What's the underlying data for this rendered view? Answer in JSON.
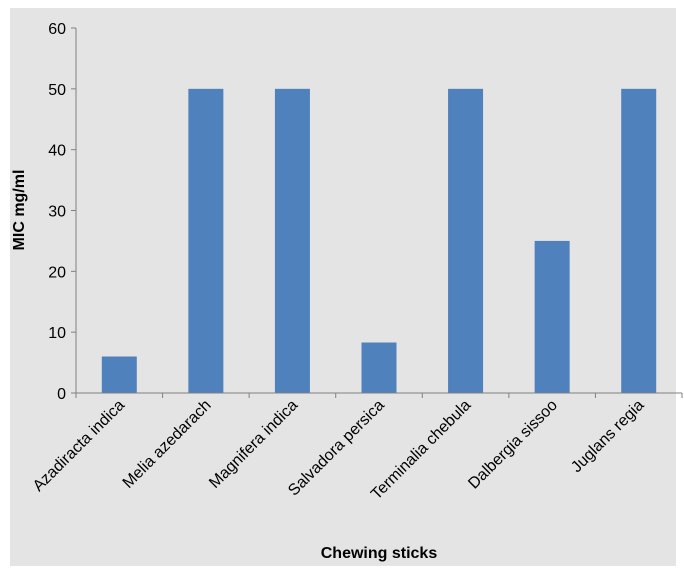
{
  "chart_data": {
    "type": "bar",
    "categories": [
      "Azadiracta indica",
      "Melia azedarach",
      "Magnifera indica",
      "Salvadora persica",
      "Terminalia chebula",
      "Dalbergia sissoo",
      "Juglans regia"
    ],
    "values": [
      6,
      50,
      50,
      8.3,
      50,
      25,
      50
    ],
    "xlabel": "Chewing sticks",
    "ylabel": "MIC mg/ml",
    "ylim": [
      0,
      60
    ],
    "yticks": [
      "0",
      "10",
      "20",
      "30",
      "40",
      "50",
      "60"
    ],
    "grid": false,
    "legend": "none",
    "colors": {
      "bar": "#4F81BD",
      "background": "#E4E4E4",
      "axis": "#808080"
    }
  }
}
